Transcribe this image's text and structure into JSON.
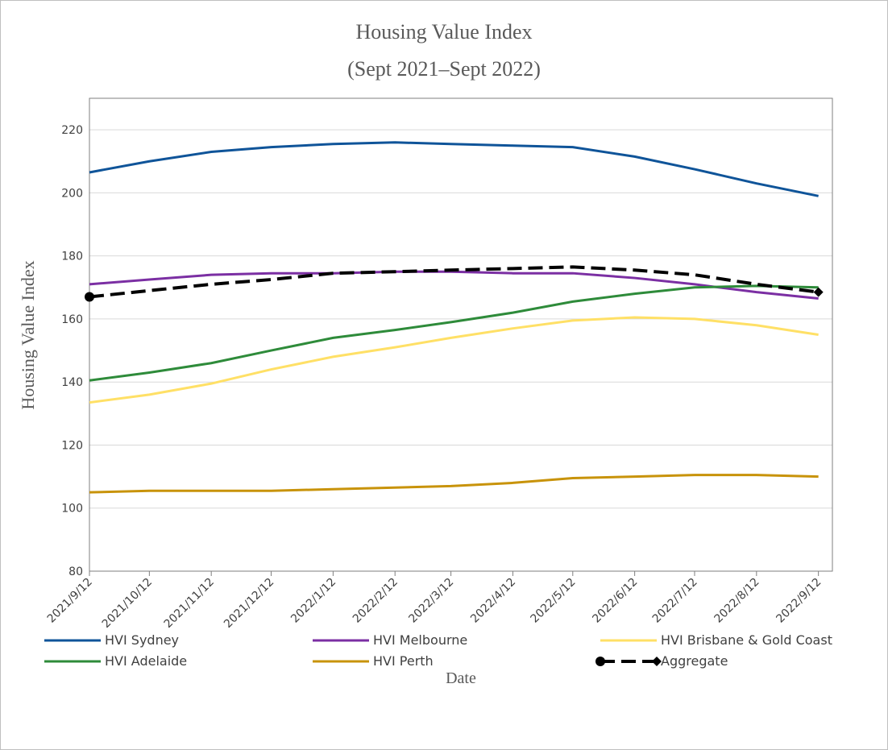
{
  "chart_data": {
    "type": "line",
    "title": "Housing Value Index",
    "subtitle": "(Sept 2021–Sept 2022)",
    "x_label": "Date",
    "y_label": "Housing Value Index",
    "x": [
      "2021/9/12",
      "2021/10/12",
      "2021/11/12",
      "2021/12/12",
      "2022/1/12",
      "2022/2/12",
      "2022/3/12",
      "2022/4/12",
      "2022/5/12",
      "2022/6/12",
      "2022/7/12",
      "2022/8/12",
      "2022/9/12"
    ],
    "ylim": [
      80,
      230
    ],
    "yticks": [
      80,
      100,
      120,
      140,
      160,
      180,
      200,
      220
    ],
    "grid": true,
    "legend": "bottom",
    "series": [
      {
        "name": "HVI Sydney",
        "color": "#0f5499",
        "values": [
          206.5,
          210,
          213,
          214.5,
          215.5,
          216,
          215.5,
          215,
          214.5,
          211.5,
          207.5,
          203,
          199
        ]
      },
      {
        "name": "HVI Melbourne",
        "color": "#7b2fa3",
        "values": [
          171,
          172.5,
          174,
          174.5,
          174.5,
          175,
          175,
          174.5,
          174.5,
          173,
          171,
          168.5,
          166.5
        ]
      },
      {
        "name": "HVI Brisbane & Gold Coast",
        "color": "#ffe066",
        "values": [
          133.5,
          136,
          139.5,
          144,
          148,
          151,
          154,
          157,
          159.5,
          160.5,
          160,
          158,
          155
        ]
      },
      {
        "name": "HVI Adelaide",
        "color": "#2e8b3a",
        "values": [
          140.5,
          143,
          146,
          150,
          154,
          156.5,
          159,
          162,
          165.5,
          168,
          170,
          170.5,
          170
        ]
      },
      {
        "name": "HVI Perth",
        "color": "#c8930a",
        "values": [
          105,
          105.5,
          105.5,
          105.5,
          106,
          106.5,
          107,
          108,
          109.5,
          110,
          110.5,
          110.5,
          110
        ]
      },
      {
        "name": "Aggregate",
        "color": "#000000",
        "dashed": true,
        "values": [
          167,
          169,
          171,
          172.5,
          174.5,
          175,
          175.5,
          176,
          176.5,
          175.5,
          174,
          171,
          168.5
        ]
      }
    ]
  }
}
